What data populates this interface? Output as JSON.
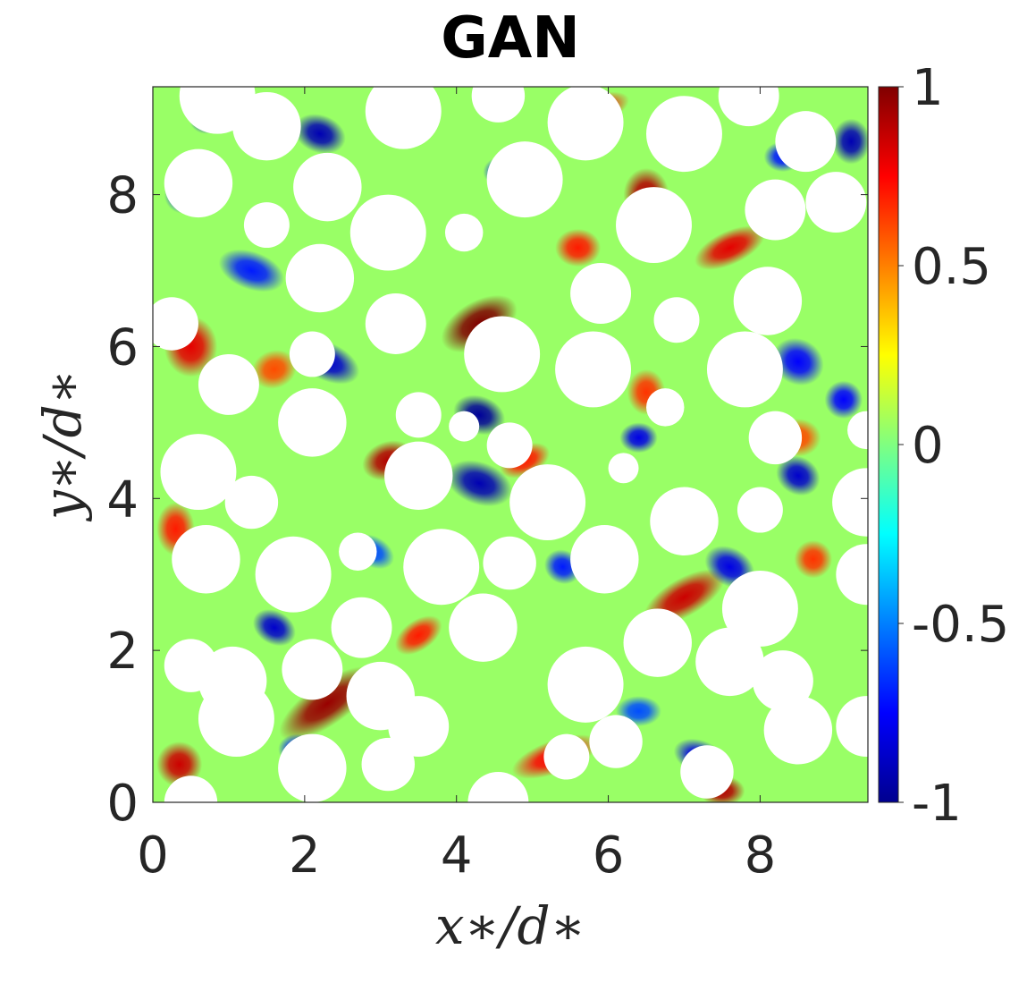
{
  "chart_data": {
    "type": "heatmap",
    "title": "GAN",
    "xlabel": "x∗/d∗",
    "ylabel": "y∗/d∗",
    "xlim": [
      0,
      9.42
    ],
    "ylim": [
      0,
      9.42
    ],
    "x_ticks": [
      0,
      2,
      4,
      6,
      8
    ],
    "y_ticks": [
      0,
      2,
      4,
      6,
      8
    ],
    "colorbar": {
      "colormap": "jet",
      "range": [
        -1,
        1
      ],
      "ticks": [
        -1,
        -0.5,
        0,
        0.5,
        1
      ],
      "tick_labels": [
        "-1",
        "-0.5",
        "0",
        "0.5",
        "1"
      ]
    },
    "background_level": 0.05,
    "features": [
      {
        "x": 4.3,
        "y": 6.3,
        "value": 1.0,
        "sx": 0.55,
        "sy": 0.3,
        "angle": 30
      },
      {
        "x": 2.3,
        "y": 1.3,
        "value": 0.95,
        "sx": 0.75,
        "sy": 0.28,
        "angle": 35
      },
      {
        "x": 6.5,
        "y": 8.0,
        "value": 0.9,
        "sx": 0.3,
        "sy": 0.35,
        "angle": 0
      },
      {
        "x": 7.6,
        "y": 7.3,
        "value": 0.8,
        "sx": 0.5,
        "sy": 0.22,
        "angle": 25
      },
      {
        "x": 7.0,
        "y": 2.7,
        "value": 0.85,
        "sx": 0.6,
        "sy": 0.25,
        "angle": 30
      },
      {
        "x": 0.35,
        "y": 0.5,
        "value": 0.85,
        "sx": 0.3,
        "sy": 0.3,
        "angle": 0
      },
      {
        "x": 3.1,
        "y": 4.5,
        "value": 0.9,
        "sx": 0.35,
        "sy": 0.25,
        "angle": 20
      },
      {
        "x": 0.5,
        "y": 6.0,
        "value": 0.8,
        "sx": 0.35,
        "sy": 0.4,
        "angle": 0
      },
      {
        "x": 5.3,
        "y": 0.6,
        "value": 0.75,
        "sx": 0.6,
        "sy": 0.22,
        "angle": 20
      },
      {
        "x": 7.5,
        "y": 0.15,
        "value": 0.9,
        "sx": 0.3,
        "sy": 0.2,
        "angle": 0
      },
      {
        "x": 4.9,
        "y": 4.5,
        "value": 0.7,
        "sx": 0.35,
        "sy": 0.2,
        "angle": 25
      },
      {
        "x": 0.3,
        "y": 3.6,
        "value": 0.7,
        "sx": 0.25,
        "sy": 0.35,
        "angle": 0
      },
      {
        "x": 5.8,
        "y": 9.1,
        "value": 0.75,
        "sx": 0.5,
        "sy": 0.2,
        "angle": 20
      },
      {
        "x": 1.3,
        "y": 9.1,
        "value": 0.7,
        "sx": 0.25,
        "sy": 0.2,
        "angle": 0
      },
      {
        "x": 3.5,
        "y": 2.2,
        "value": 0.7,
        "sx": 0.35,
        "sy": 0.2,
        "angle": 35
      },
      {
        "x": 8.5,
        "y": 4.8,
        "value": 0.6,
        "sx": 0.3,
        "sy": 0.25,
        "angle": 0
      },
      {
        "x": 6.5,
        "y": 5.4,
        "value": 0.65,
        "sx": 0.25,
        "sy": 0.3,
        "angle": 0
      },
      {
        "x": 8.7,
        "y": 3.2,
        "value": 0.65,
        "sx": 0.25,
        "sy": 0.25,
        "angle": 0
      },
      {
        "x": 5.6,
        "y": 7.3,
        "value": 0.7,
        "sx": 0.3,
        "sy": 0.25,
        "angle": 0
      },
      {
        "x": 1.6,
        "y": 5.7,
        "value": 0.6,
        "sx": 0.3,
        "sy": 0.25,
        "angle": 20
      },
      {
        "x": 4.3,
        "y": 5.1,
        "value": -0.95,
        "sx": 0.35,
        "sy": 0.25,
        "angle": -20
      },
      {
        "x": 4.3,
        "y": 4.2,
        "value": -0.9,
        "sx": 0.45,
        "sy": 0.28,
        "angle": -20
      },
      {
        "x": 2.3,
        "y": 5.8,
        "value": -0.85,
        "sx": 0.45,
        "sy": 0.25,
        "angle": -25
      },
      {
        "x": 2.2,
        "y": 8.8,
        "value": -0.9,
        "sx": 0.35,
        "sy": 0.25,
        "angle": -20
      },
      {
        "x": 1.3,
        "y": 7.0,
        "value": -0.7,
        "sx": 0.45,
        "sy": 0.25,
        "angle": -20
      },
      {
        "x": 7.6,
        "y": 3.1,
        "value": -0.8,
        "sx": 0.35,
        "sy": 0.25,
        "angle": -30
      },
      {
        "x": 8.5,
        "y": 5.8,
        "value": -0.75,
        "sx": 0.35,
        "sy": 0.3,
        "angle": -30
      },
      {
        "x": 9.2,
        "y": 8.7,
        "value": -0.9,
        "sx": 0.25,
        "sy": 0.3,
        "angle": 0
      },
      {
        "x": 7.2,
        "y": 0.6,
        "value": -0.8,
        "sx": 0.35,
        "sy": 0.22,
        "angle": -20
      },
      {
        "x": 1.6,
        "y": 2.3,
        "value": -0.85,
        "sx": 0.3,
        "sy": 0.22,
        "angle": -30
      },
      {
        "x": 3.6,
        "y": 1.1,
        "value": -0.7,
        "sx": 0.3,
        "sy": 0.22,
        "angle": -30
      },
      {
        "x": 6.0,
        "y": 5.8,
        "value": -0.85,
        "sx": 0.25,
        "sy": 0.2,
        "angle": 0
      },
      {
        "x": 8.5,
        "y": 4.3,
        "value": -0.85,
        "sx": 0.3,
        "sy": 0.25,
        "angle": -30
      },
      {
        "x": 6.4,
        "y": 4.8,
        "value": -0.8,
        "sx": 0.25,
        "sy": 0.2,
        "angle": 0
      },
      {
        "x": 5.4,
        "y": 3.1,
        "value": -0.7,
        "sx": 0.25,
        "sy": 0.22,
        "angle": -30
      },
      {
        "x": 0.4,
        "y": 8.0,
        "value": -0.7,
        "sx": 0.25,
        "sy": 0.25,
        "angle": 0
      },
      {
        "x": 9.1,
        "y": 5.3,
        "value": -0.75,
        "sx": 0.25,
        "sy": 0.25,
        "angle": 0
      },
      {
        "x": 6.4,
        "y": 1.2,
        "value": -0.6,
        "sx": 0.3,
        "sy": 0.2,
        "angle": 0
      },
      {
        "x": 2.9,
        "y": 3.3,
        "value": -0.6,
        "sx": 0.3,
        "sy": 0.2,
        "angle": -30
      },
      {
        "x": 0.7,
        "y": 9.0,
        "value": -0.8,
        "sx": 0.22,
        "sy": 0.2,
        "angle": 0
      },
      {
        "x": 8.3,
        "y": 8.5,
        "value": -0.7,
        "sx": 0.25,
        "sy": 0.2,
        "angle": 0
      },
      {
        "x": 4.6,
        "y": 8.3,
        "value": -0.7,
        "sx": 0.25,
        "sy": 0.2,
        "angle": 0
      },
      {
        "x": 1.9,
        "y": 0.7,
        "value": -0.7,
        "sx": 0.25,
        "sy": 0.2,
        "angle": 0
      }
    ],
    "holes": [
      [
        0.85,
        9.3,
        0.5
      ],
      [
        3.3,
        9.1,
        0.5
      ],
      [
        4.55,
        9.3,
        0.35
      ],
      [
        7.85,
        9.3,
        0.4
      ],
      [
        1.5,
        8.9,
        0.45
      ],
      [
        5.7,
        8.95,
        0.5
      ],
      [
        8.6,
        8.7,
        0.4
      ],
      [
        7.0,
        8.8,
        0.5
      ],
      [
        0.6,
        8.15,
        0.45
      ],
      [
        2.3,
        8.1,
        0.45
      ],
      [
        4.9,
        8.2,
        0.5
      ],
      [
        9.0,
        7.9,
        0.4
      ],
      [
        1.5,
        7.6,
        0.3
      ],
      [
        3.1,
        7.5,
        0.5
      ],
      [
        4.1,
        7.5,
        0.25
      ],
      [
        6.6,
        7.6,
        0.5
      ],
      [
        8.2,
        7.8,
        0.4
      ],
      [
        2.2,
        6.9,
        0.45
      ],
      [
        5.9,
        6.7,
        0.4
      ],
      [
        8.1,
        6.6,
        0.45
      ],
      [
        3.2,
        6.3,
        0.4
      ],
      [
        0.25,
        6.3,
        0.35
      ],
      [
        6.9,
        6.35,
        0.3
      ],
      [
        2.1,
        5.9,
        0.3
      ],
      [
        4.6,
        5.9,
        0.5
      ],
      [
        5.8,
        5.7,
        0.5
      ],
      [
        7.8,
        5.7,
        0.5
      ],
      [
        1.0,
        5.5,
        0.4
      ],
      [
        3.5,
        5.1,
        0.3
      ],
      [
        6.75,
        5.2,
        0.25
      ],
      [
        2.1,
        5.0,
        0.45
      ],
      [
        4.1,
        4.95,
        0.2
      ],
      [
        4.7,
        4.7,
        0.3
      ],
      [
        8.2,
        4.8,
        0.35
      ],
      [
        9.4,
        4.9,
        0.25
      ],
      [
        0.6,
        4.35,
        0.5
      ],
      [
        3.5,
        4.3,
        0.45
      ],
      [
        6.2,
        4.4,
        0.2
      ],
      [
        1.3,
        3.95,
        0.35
      ],
      [
        5.2,
        3.95,
        0.5
      ],
      [
        9.4,
        3.95,
        0.45
      ],
      [
        7.0,
        3.7,
        0.45
      ],
      [
        8.0,
        3.85,
        0.3
      ],
      [
        0.7,
        3.2,
        0.45
      ],
      [
        1.85,
        3.0,
        0.5
      ],
      [
        2.7,
        3.3,
        0.25
      ],
      [
        3.8,
        3.1,
        0.5
      ],
      [
        4.7,
        3.15,
        0.35
      ],
      [
        5.95,
        3.2,
        0.45
      ],
      [
        9.4,
        3.0,
        0.4
      ],
      [
        2.75,
        2.3,
        0.4
      ],
      [
        8.0,
        2.55,
        0.5
      ],
      [
        0.5,
        1.8,
        0.35
      ],
      [
        1.05,
        1.6,
        0.45
      ],
      [
        4.35,
        2.3,
        0.45
      ],
      [
        6.65,
        2.1,
        0.45
      ],
      [
        2.1,
        1.75,
        0.4
      ],
      [
        3.0,
        1.4,
        0.45
      ],
      [
        5.7,
        1.55,
        0.5
      ],
      [
        7.6,
        1.85,
        0.45
      ],
      [
        8.3,
        1.6,
        0.4
      ],
      [
        1.1,
        1.1,
        0.5
      ],
      [
        3.5,
        1.0,
        0.4
      ],
      [
        6.1,
        0.8,
        0.35
      ],
      [
        8.5,
        0.95,
        0.45
      ],
      [
        9.4,
        1.0,
        0.4
      ],
      [
        2.1,
        0.45,
        0.45
      ],
      [
        3.1,
        0.5,
        0.35
      ],
      [
        4.55,
        0.0,
        0.4
      ],
      [
        5.45,
        0.6,
        0.3
      ],
      [
        7.3,
        0.4,
        0.35
      ],
      [
        0.5,
        0.0,
        0.35
      ]
    ]
  }
}
